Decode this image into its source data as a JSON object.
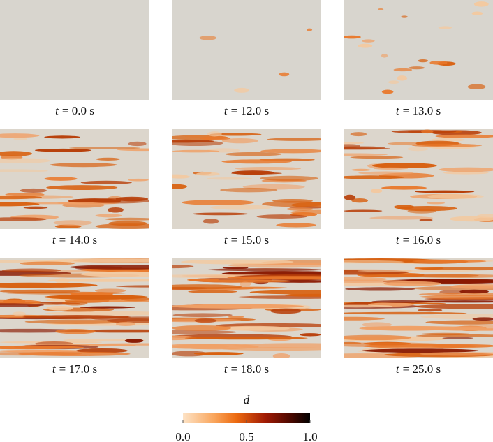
{
  "panels": [
    {
      "var": "t",
      "text": "= 0.0 s"
    },
    {
      "var": "t",
      "text": "= 12.0 s"
    },
    {
      "var": "t",
      "text": "= 13.0 s"
    },
    {
      "var": "t",
      "text": "= 14.0 s"
    },
    {
      "var": "t",
      "text": "= 15.0 s"
    },
    {
      "var": "t",
      "text": "= 16.0 s"
    },
    {
      "var": "t",
      "text": "= 17.0 s"
    },
    {
      "var": "t",
      "text": "= 18.0 s"
    },
    {
      "var": "t",
      "text": "= 25.0 s"
    }
  ],
  "colorbar": {
    "label": "d",
    "range": [
      0,
      1
    ],
    "ticks": [
      {
        "value": 0,
        "label": "0.0"
      },
      {
        "value": 0.5,
        "label": "0.5"
      },
      {
        "value": 1,
        "label": "1.0"
      }
    ]
  }
}
